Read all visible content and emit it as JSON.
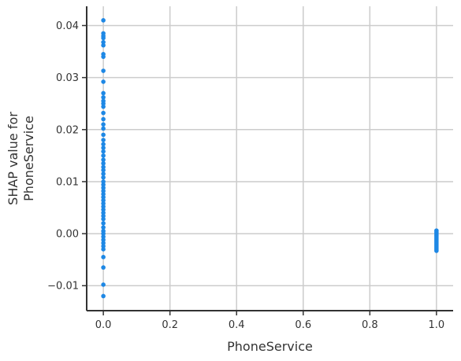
{
  "chart_data": {
    "type": "scatter",
    "title": "",
    "xlabel": "PhoneService",
    "ylabel_lines": [
      "SHAP value for",
      "PhoneService"
    ],
    "xlim": [
      -0.05,
      1.05
    ],
    "ylim": [
      -0.0148,
      0.0437
    ],
    "xticks": [
      0.0,
      0.2,
      0.4,
      0.6,
      0.8,
      1.0
    ],
    "xtick_labels": [
      "0.0",
      "0.2",
      "0.4",
      "0.6",
      "0.8",
      "1.0"
    ],
    "yticks": [
      -0.01,
      0.0,
      0.01,
      0.02,
      0.03,
      0.04
    ],
    "ytick_labels": [
      "−0.01",
      "0.00",
      "0.01",
      "0.02",
      "0.03",
      "0.04"
    ],
    "grid": true,
    "point_color": "#1E88E5",
    "points": [
      {
        "x": 0,
        "y": 0.041
      },
      {
        "x": 0,
        "y": 0.0385
      },
      {
        "x": 0,
        "y": 0.038
      },
      {
        "x": 0,
        "y": 0.0376
      },
      {
        "x": 0,
        "y": 0.0368
      },
      {
        "x": 0,
        "y": 0.0362
      },
      {
        "x": 0,
        "y": 0.0345
      },
      {
        "x": 0,
        "y": 0.034
      },
      {
        "x": 0,
        "y": 0.0313
      },
      {
        "x": 0,
        "y": 0.0292
      },
      {
        "x": 0,
        "y": 0.027
      },
      {
        "x": 0,
        "y": 0.0262
      },
      {
        "x": 0,
        "y": 0.0255
      },
      {
        "x": 0,
        "y": 0.025
      },
      {
        "x": 0,
        "y": 0.0244
      },
      {
        "x": 0,
        "y": 0.0232
      },
      {
        "x": 0,
        "y": 0.022
      },
      {
        "x": 0,
        "y": 0.021
      },
      {
        "x": 0,
        "y": 0.0202
      },
      {
        "x": 0,
        "y": 0.019
      },
      {
        "x": 0,
        "y": 0.018
      },
      {
        "x": 0,
        "y": 0.0172
      },
      {
        "x": 0,
        "y": 0.0165
      },
      {
        "x": 0,
        "y": 0.0158
      },
      {
        "x": 0,
        "y": 0.015
      },
      {
        "x": 0,
        "y": 0.0142
      },
      {
        "x": 0,
        "y": 0.0135
      },
      {
        "x": 0,
        "y": 0.0128
      },
      {
        "x": 0,
        "y": 0.0122
      },
      {
        "x": 0,
        "y": 0.0115
      },
      {
        "x": 0,
        "y": 0.0108
      },
      {
        "x": 0,
        "y": 0.01
      },
      {
        "x": 0,
        "y": 0.0094
      },
      {
        "x": 0,
        "y": 0.0088
      },
      {
        "x": 0,
        "y": 0.0082
      },
      {
        "x": 0,
        "y": 0.0076
      },
      {
        "x": 0,
        "y": 0.007
      },
      {
        "x": 0,
        "y": 0.0064
      },
      {
        "x": 0,
        "y": 0.0058
      },
      {
        "x": 0,
        "y": 0.0052
      },
      {
        "x": 0,
        "y": 0.0046
      },
      {
        "x": 0,
        "y": 0.004
      },
      {
        "x": 0,
        "y": 0.0034
      },
      {
        "x": 0,
        "y": 0.0028
      },
      {
        "x": 0,
        "y": 0.002
      },
      {
        "x": 0,
        "y": 0.0012
      },
      {
        "x": 0,
        "y": 0.0005
      },
      {
        "x": 0,
        "y": 0.0
      },
      {
        "x": 0,
        "y": -0.0006
      },
      {
        "x": 0,
        "y": -0.0012
      },
      {
        "x": 0,
        "y": -0.0018
      },
      {
        "x": 0,
        "y": -0.0024
      },
      {
        "x": 0,
        "y": -0.003
      },
      {
        "x": 0,
        "y": -0.0045
      },
      {
        "x": 0,
        "y": -0.0065
      },
      {
        "x": 0,
        "y": -0.0098
      },
      {
        "x": 0,
        "y": -0.012
      },
      {
        "x": 1,
        "y": 0.0006
      },
      {
        "x": 1,
        "y": 0.0003
      },
      {
        "x": 1,
        "y": 0.0
      },
      {
        "x": 1,
        "y": -0.0003
      },
      {
        "x": 1,
        "y": -0.0006
      },
      {
        "x": 1,
        "y": -0.0009
      },
      {
        "x": 1,
        "y": -0.0012
      },
      {
        "x": 1,
        "y": -0.0015
      },
      {
        "x": 1,
        "y": -0.0018
      },
      {
        "x": 1,
        "y": -0.0021
      },
      {
        "x": 1,
        "y": -0.0024
      },
      {
        "x": 1,
        "y": -0.0027
      },
      {
        "x": 1,
        "y": -0.003
      },
      {
        "x": 1,
        "y": -0.0033
      }
    ]
  }
}
